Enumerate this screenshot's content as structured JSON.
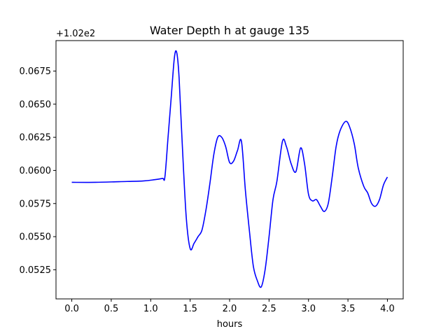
{
  "chart_data": {
    "type": "line",
    "title": "Water Depth h at gauge 135",
    "xlabel": "hours",
    "ylabel": "",
    "offset_text": "+1.02e2",
    "xlim": [
      -0.2,
      4.2
    ],
    "ylim": [
      0.0503,
      0.0698
    ],
    "xticks": [
      0.0,
      0.5,
      1.0,
      1.5,
      2.0,
      2.5,
      3.0,
      3.5,
      4.0
    ],
    "xtick_labels": [
      "0.0",
      "0.5",
      "1.0",
      "1.5",
      "2.0",
      "2.5",
      "3.0",
      "3.5",
      "4.0"
    ],
    "yticks": [
      0.0525,
      0.055,
      0.0575,
      0.06,
      0.0625,
      0.065,
      0.0675
    ],
    "ytick_labels": [
      "0.0525",
      "0.0550",
      "0.0575",
      "0.0600",
      "0.0625",
      "0.0650",
      "0.0675"
    ],
    "grid": false,
    "legend": "none",
    "series": [
      {
        "color": "#0000ff",
        "x": [
          0.0,
          0.3,
          0.6,
          0.9,
          1.05,
          1.15,
          1.18,
          1.22,
          1.26,
          1.3,
          1.33,
          1.36,
          1.4,
          1.45,
          1.5,
          1.55,
          1.6,
          1.65,
          1.7,
          1.75,
          1.8,
          1.85,
          1.9,
          1.95,
          2.0,
          2.05,
          2.1,
          2.15,
          2.2,
          2.25,
          2.3,
          2.35,
          2.4,
          2.45,
          2.5,
          2.55,
          2.6,
          2.67,
          2.72,
          2.78,
          2.84,
          2.9,
          2.95,
          3.0,
          3.05,
          3.1,
          3.15,
          3.2,
          3.25,
          3.3,
          3.35,
          3.4,
          3.47,
          3.52,
          3.58,
          3.63,
          3.7,
          3.75,
          3.8,
          3.85,
          3.9,
          3.95,
          4.0
        ],
        "y": [
          0.0591,
          0.0591,
          0.05915,
          0.0592,
          0.0593,
          0.0594,
          0.0595,
          0.0625,
          0.0655,
          0.0685,
          0.0689,
          0.067,
          0.062,
          0.0565,
          0.0541,
          0.0545,
          0.055,
          0.0555,
          0.057,
          0.059,
          0.0612,
          0.0625,
          0.0625,
          0.0618,
          0.0606,
          0.0607,
          0.0615,
          0.0622,
          0.0585,
          0.0555,
          0.0528,
          0.0517,
          0.0512,
          0.0525,
          0.055,
          0.0578,
          0.0592,
          0.0622,
          0.0618,
          0.0605,
          0.0599,
          0.0617,
          0.0605,
          0.0582,
          0.0577,
          0.0578,
          0.0573,
          0.0569,
          0.0575,
          0.0595,
          0.0618,
          0.063,
          0.0637,
          0.0633,
          0.062,
          0.0602,
          0.0588,
          0.0583,
          0.0575,
          0.0573,
          0.0578,
          0.0589,
          0.0595
        ]
      }
    ]
  }
}
